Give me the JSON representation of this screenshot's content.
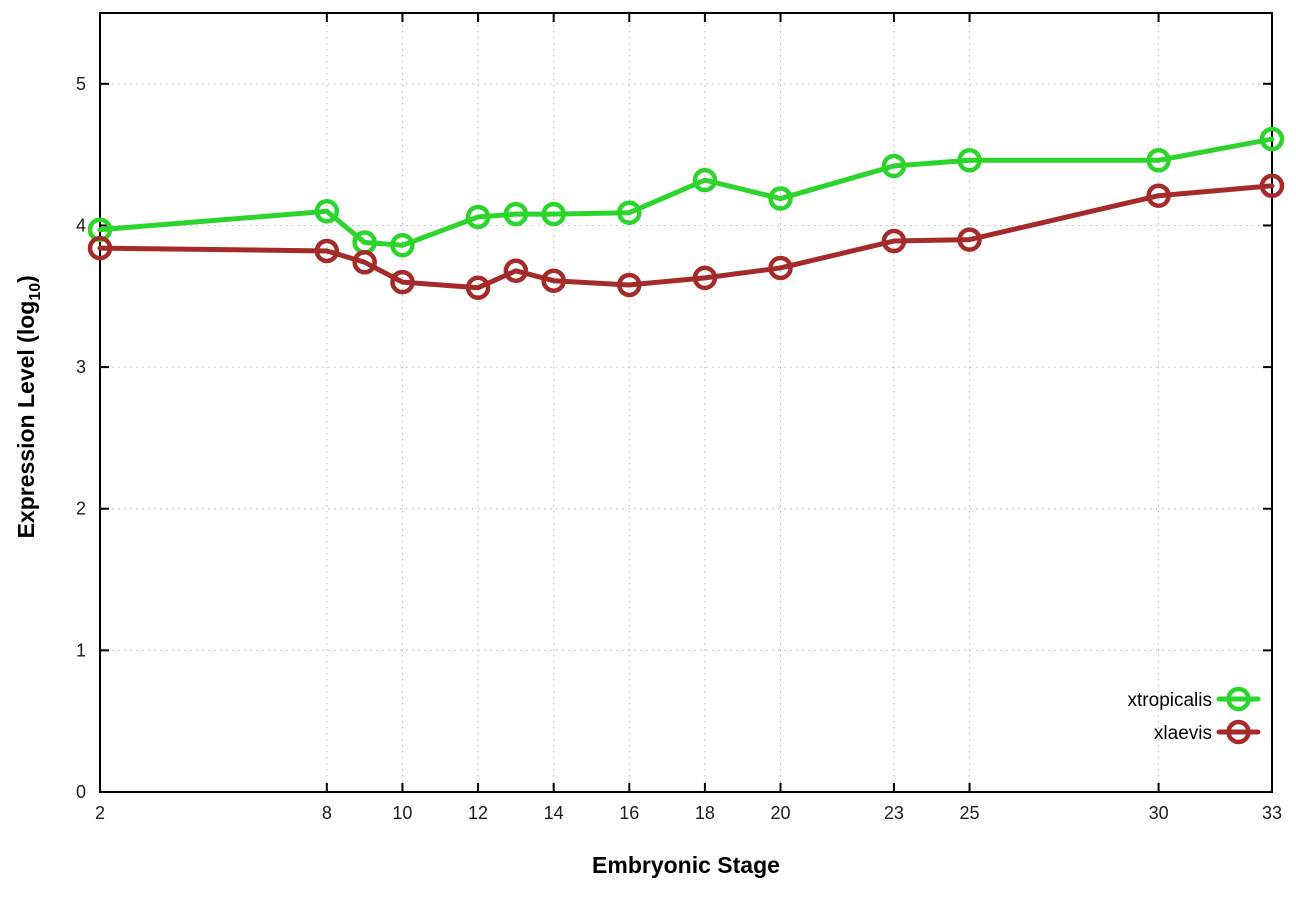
{
  "chart_data": {
    "type": "line",
    "title": "",
    "xlabel": "Embryonic Stage",
    "ylabel": {
      "pre": "Expression Level (log",
      "sub": "10",
      "post": ")"
    },
    "x": [
      2,
      8,
      9,
      10,
      12,
      13,
      14,
      16,
      18,
      20,
      23,
      25,
      30,
      33
    ],
    "series": [
      {
        "name": "xtropicalis",
        "color": "#2bd52b",
        "values": [
          3.97,
          4.1,
          3.88,
          3.86,
          4.06,
          4.08,
          4.08,
          4.09,
          4.32,
          4.19,
          4.42,
          4.46,
          4.46,
          4.61
        ]
      },
      {
        "name": "xlaevis",
        "color": "#a52a2a",
        "values": [
          3.84,
          3.82,
          3.74,
          3.6,
          3.56,
          3.68,
          3.61,
          3.58,
          3.63,
          3.7,
          3.89,
          3.9,
          4.21,
          4.28
        ]
      }
    ],
    "xticks": [
      2,
      8,
      10,
      12,
      14,
      16,
      18,
      20,
      23,
      25,
      30,
      33
    ],
    "yticks": [
      0,
      1,
      2,
      3,
      4,
      5
    ],
    "xlim": [
      2,
      33
    ],
    "ylim": [
      0,
      5.5
    ],
    "grid": true,
    "legend_position": "inside-right",
    "legend": [
      "xtropicalis",
      "xlaevis"
    ]
  },
  "style": {
    "grid_color": "#b8b8b8",
    "border_color": "#000000",
    "tick_label_color": "#1c1c1c",
    "background": "#ffffff"
  }
}
